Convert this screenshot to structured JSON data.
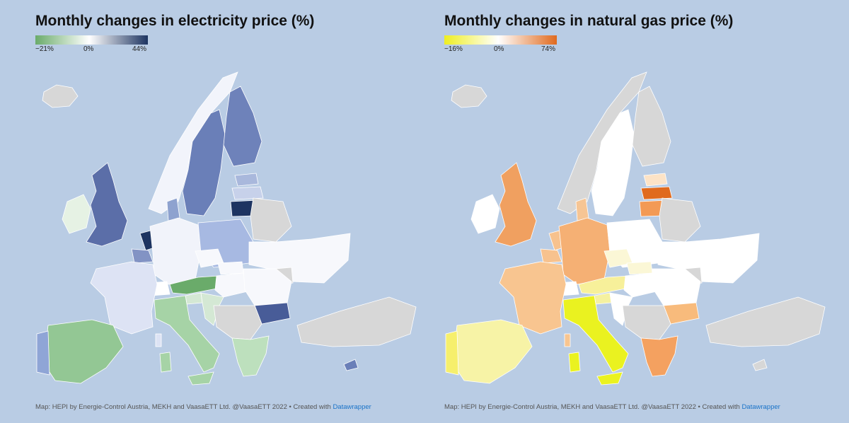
{
  "maps": [
    {
      "title": "Monthly changes in electricity price (%)",
      "legend": {
        "min_label": "−21%",
        "mid_label": "0%",
        "max_label": "44%",
        "min_color": "#6aab6a",
        "mid_color": "#ffffff",
        "max_color": "#1d3461"
      },
      "footer_text": "Map: HEPI by Energie-Control Austria, MEKH and VaasaETT Ltd. @VaasaETT 2022 • Created with ",
      "footer_link": "Datawrapper",
      "colors": {
        "iceland": "#d7d7d7",
        "ireland": "#e6f2e4",
        "uk": "#5b6ea8",
        "norway": "#f2f4fb",
        "sweden": "#6a7fb8",
        "finland": "#6e82ba",
        "denmark": "#8ea2cf",
        "estonia": "#a9b8dc",
        "latvia": "#c7d1ea",
        "lithuania": "#1d3461",
        "netherlands": "#1d3461",
        "belgium": "#8293c4",
        "germany": "#f1f3fa",
        "poland": "#a7b9e2",
        "france": "#dde3f4",
        "spain": "#93c794",
        "portugal": "#8fa5d6",
        "italy": "#a6d3a6",
        "switzerland": "#ffffff",
        "austria": "#6aab6a",
        "czechia": "#f7f8fc",
        "slovakia": "#f7f8fc",
        "hungary": "#f7f8fc",
        "romania": "#f7f8fc",
        "bulgaria": "#485c98",
        "greece": "#bde0bd",
        "croatia": "#d4e8d4",
        "slovenia": "#d4e8d4",
        "balkans": "#d7d7d7",
        "belarus": "#d7d7d7",
        "ukraine": "#f7f8fc",
        "turkey": "#d7d7d7",
        "cyprus": "#6a7fb8",
        "moldova": "#d7d7d7"
      }
    },
    {
      "title": "Monthly changes in natural gas price (%)",
      "legend": {
        "min_label": "−16%",
        "mid_label": "0%",
        "max_label": "74%",
        "min_color": "#eeee22",
        "mid_color": "#ffffff",
        "max_color": "#e06a1e"
      },
      "footer_text": "Map: HEPI by Energie-Control Austria, MEKH and VaasaETT Ltd. @VaasaETT 2022 • Created with ",
      "footer_link": "Datawrapper",
      "colors": {
        "iceland": "#d7d7d7",
        "ireland": "#ffffff",
        "uk": "#f0a060",
        "norway": "#d7d7d7",
        "sweden": "#ffffff",
        "finland": "#d7d7d7",
        "denmark": "#f6c594",
        "estonia": "#fde3c6",
        "latvia": "#e06a1e",
        "lithuania": "#f39a55",
        "netherlands": "#f7c28e",
        "belgium": "#f7c28e",
        "germany": "#f5b074",
        "poland": "#ffffff",
        "france": "#f8c590",
        "spain": "#f7f3a6",
        "portugal": "#f6ef6c",
        "italy": "#eaf220",
        "switzerland": "#ffffff",
        "austria": "#f7f09a",
        "czechia": "#fbf7d6",
        "slovakia": "#fbf7d6",
        "hungary": "#ffffff",
        "romania": "#ffffff",
        "bulgaria": "#f8bb7c",
        "greece": "#f4a160",
        "croatia": "#ffffff",
        "slovenia": "#f5f1a0",
        "balkans": "#d7d7d7",
        "belarus": "#d7d7d7",
        "ukraine": "#ffffff",
        "turkey": "#d7d7d7",
        "cyprus": "#d7d7d7",
        "moldova": "#d7d7d7"
      }
    }
  ]
}
